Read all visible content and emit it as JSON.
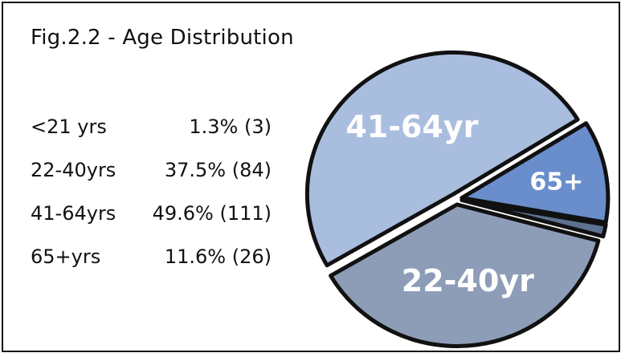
{
  "chart_data": {
    "type": "pie",
    "title": "Fig.2.2 - Age Distribution",
    "categories": [
      "<21 yrs",
      "22-40yrs",
      "41-64yrs",
      "65+yrs"
    ],
    "values": [
      3,
      84,
      111,
      26
    ],
    "percents": [
      "1.3%",
      "37.5%",
      "49.6%",
      "11.6%"
    ],
    "value_labels": [
      "1.3% (3)",
      "37.5% (84)",
      "49.6% (111)",
      "11.6% (26)"
    ],
    "slice_labels": [
      "",
      "22-40yr",
      "41-64yr",
      "65+"
    ],
    "colors": [
      "#5e7190",
      "#8d9db8",
      "#a9bddf",
      "#6a8ecb"
    ],
    "legend": "left",
    "exploded": true
  }
}
